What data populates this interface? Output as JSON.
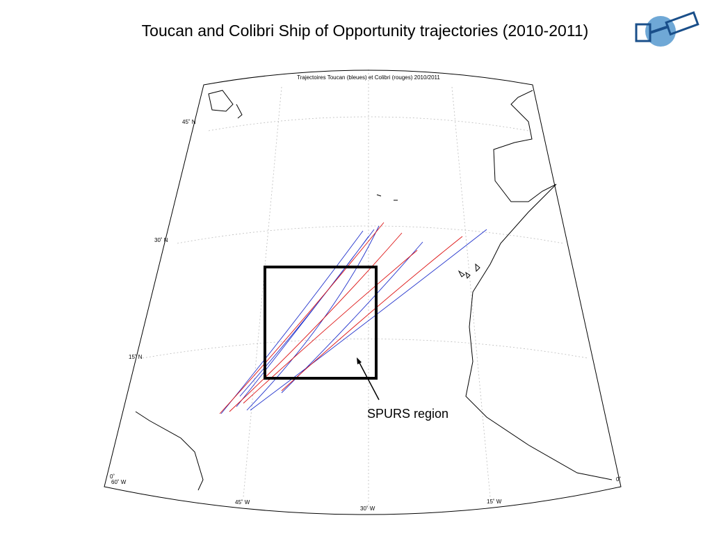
{
  "header": {
    "title": "Toucan and Colibri Ship of Opportunity trajectories (2010-2011)"
  },
  "map": {
    "title": "Trajectoires Toucan (bleues) et Colibri (rouges) 2010/2011",
    "lat_labels": [
      "45˚ N",
      "30˚ N",
      "15˚ N",
      "0˚"
    ],
    "lon_labels": [
      "60˚ W",
      "45˚ W",
      "30˚ W",
      "15˚ W",
      "0˚"
    ],
    "annotation": "SPURS region"
  }
}
